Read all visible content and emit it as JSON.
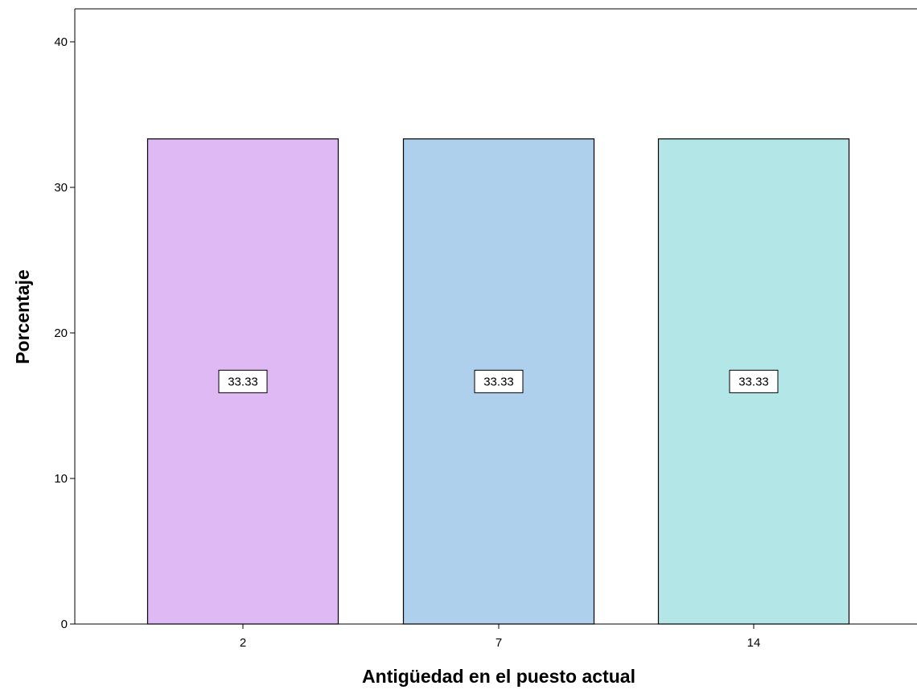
{
  "chart_data": {
    "type": "bar",
    "title": "",
    "xlabel": "Antigüedad en el puesto actual",
    "ylabel": "Porcentaje",
    "categories": [
      "2",
      "7",
      "14"
    ],
    "values": [
      33.33,
      33.33,
      33.33
    ],
    "data_labels": [
      "33.33",
      "33.33",
      "33.33"
    ],
    "ylim": [
      0,
      42
    ],
    "yticks": [
      0,
      10,
      20,
      30,
      40
    ],
    "bar_colors": [
      "#dfb9f3",
      "#aed0ed",
      "#b3e6e6"
    ],
    "bar_outline_color": "#000000",
    "grid": false,
    "legend": "none"
  }
}
